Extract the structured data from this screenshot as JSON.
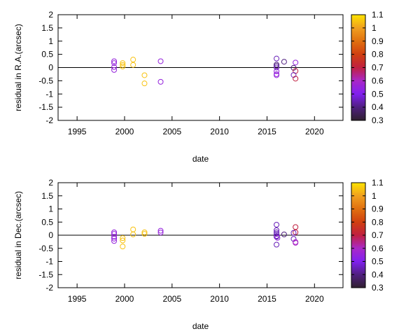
{
  "chart_data": [
    {
      "type": "scatter",
      "xlabel": "date",
      "ylabel": "residual in R.A.(arcsec)",
      "xlim": [
        1993,
        2023
      ],
      "ylim": [
        -2,
        2
      ],
      "xticks": [
        1995,
        2000,
        2005,
        2010,
        2015,
        2020
      ],
      "yticks": [
        -2,
        -1.5,
        -1,
        -0.5,
        0,
        0.5,
        1,
        1.5,
        2
      ],
      "zero_line": true,
      "grid": false,
      "marker": "open-circle",
      "colorbar": {
        "range": [
          0.3,
          1.1
        ],
        "ticks": [
          0.3,
          0.4,
          0.5,
          0.6,
          0.7,
          0.8,
          0.9,
          1,
          1.1
        ],
        "placement": "right"
      },
      "points": [
        [
          1998.9,
          0.24,
          0.55
        ],
        [
          1998.9,
          0.17,
          0.55
        ],
        [
          1998.9,
          0.02,
          0.55
        ],
        [
          1998.9,
          -0.09,
          0.55
        ],
        [
          1999.8,
          0.17,
          1.05
        ],
        [
          1999.8,
          0.1,
          1.05
        ],
        [
          1999.8,
          0.04,
          1.05
        ],
        [
          2000.9,
          0.3,
          1.05
        ],
        [
          2000.9,
          0.1,
          1.05
        ],
        [
          2002.1,
          -0.29,
          1.05
        ],
        [
          2002.1,
          -0.6,
          1.05
        ],
        [
          2003.8,
          0.24,
          0.55
        ],
        [
          2003.8,
          -0.54,
          0.55
        ],
        [
          2016.0,
          0.34,
          0.45
        ],
        [
          2016.0,
          0.11,
          0.4
        ],
        [
          2016.0,
          0.06,
          0.4
        ],
        [
          2016.0,
          0.0,
          0.45
        ],
        [
          2016.0,
          -0.14,
          0.55
        ],
        [
          2016.0,
          -0.25,
          0.55
        ],
        [
          2016.0,
          -0.29,
          0.55
        ],
        [
          2016.8,
          0.22,
          0.4
        ],
        [
          2018.0,
          0.19,
          0.55
        ],
        [
          2017.8,
          -0.01,
          0.4
        ],
        [
          2018.0,
          -0.13,
          0.7
        ],
        [
          2017.8,
          -0.28,
          0.45
        ],
        [
          2018.0,
          -0.42,
          0.7
        ]
      ]
    },
    {
      "type": "scatter",
      "xlabel": "date",
      "ylabel": "residual in Dec.(arcsec)",
      "xlim": [
        1993,
        2023
      ],
      "ylim": [
        -2,
        2
      ],
      "xticks": [
        1995,
        2000,
        2005,
        2010,
        2015,
        2020
      ],
      "yticks": [
        -2,
        -1.5,
        -1,
        -0.5,
        0,
        0.5,
        1,
        1.5,
        2
      ],
      "zero_line": true,
      "grid": false,
      "marker": "open-circle",
      "colorbar": {
        "range": [
          0.3,
          1.1
        ],
        "ticks": [
          0.3,
          0.4,
          0.5,
          0.6,
          0.7,
          0.8,
          0.9,
          1,
          1.1
        ],
        "placement": "right"
      },
      "points": [
        [
          1998.9,
          0.11,
          0.55
        ],
        [
          1998.9,
          0.05,
          0.55
        ],
        [
          1998.9,
          -0.06,
          0.55
        ],
        [
          1998.9,
          -0.13,
          0.55
        ],
        [
          1998.9,
          -0.22,
          0.55
        ],
        [
          1999.8,
          -0.11,
          1.05
        ],
        [
          1999.8,
          -0.2,
          1.05
        ],
        [
          1999.8,
          -0.43,
          1.05
        ],
        [
          2000.9,
          0.22,
          1.05
        ],
        [
          2000.9,
          0.03,
          1.05
        ],
        [
          2002.1,
          0.11,
          1.05
        ],
        [
          2002.1,
          0.05,
          1.05
        ],
        [
          2003.8,
          0.17,
          0.55
        ],
        [
          2003.8,
          0.1,
          0.55
        ],
        [
          2016.0,
          0.4,
          0.45
        ],
        [
          2016.0,
          0.19,
          0.45
        ],
        [
          2016.0,
          0.11,
          0.45
        ],
        [
          2016.0,
          0.05,
          0.45
        ],
        [
          2016.0,
          -0.03,
          0.45
        ],
        [
          2016.0,
          -0.06,
          0.45
        ],
        [
          2016.0,
          -0.36,
          0.45
        ],
        [
          2016.1,
          -0.1,
          0.55
        ],
        [
          2016.8,
          0.03,
          0.4
        ],
        [
          2018.0,
          0.31,
          0.7
        ],
        [
          2018.0,
          0.11,
          0.7
        ],
        [
          2017.8,
          0.09,
          0.45
        ],
        [
          2017.8,
          -0.14,
          0.45
        ],
        [
          2018.0,
          -0.26,
          0.6
        ],
        [
          2018.0,
          -0.29,
          0.6
        ]
      ]
    }
  ]
}
